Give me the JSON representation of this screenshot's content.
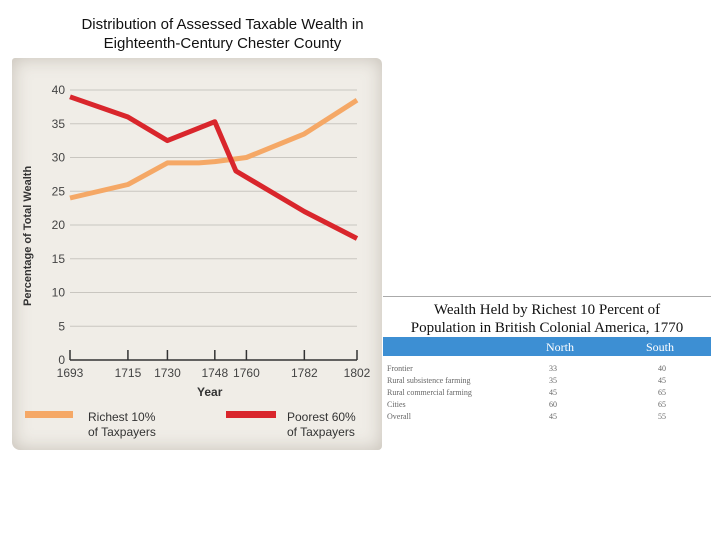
{
  "slide": {
    "title_line1": "Distribution of Assessed Taxable Wealth in",
    "title_line2": "Eighteenth-Century Chester County"
  },
  "chart_data": {
    "type": "line",
    "xlabel": "Year",
    "ylabel": "Percentage of Total Wealth",
    "x": [
      1693,
      1715,
      1730,
      1748,
      1760,
      1782,
      1802
    ],
    "xticks": [
      "1693",
      "1715",
      "1730",
      "1748",
      "1760",
      "1782",
      "1802"
    ],
    "yticks": [
      "0",
      "5",
      "10",
      "15",
      "20",
      "25",
      "30",
      "35",
      "40"
    ],
    "ylim": [
      0,
      40
    ],
    "grid": true,
    "series": [
      {
        "name": "Richest 10% of Taxpayers",
        "label_line1": "Richest 10%",
        "label_line2": "of Taxpayers",
        "color": "#f5a866",
        "points": [
          [
            1693,
            24
          ],
          [
            1715,
            26
          ],
          [
            1730,
            29.2
          ],
          [
            1742,
            29.2
          ],
          [
            1748,
            29.4
          ],
          [
            1760,
            30
          ],
          [
            1782,
            33.5
          ],
          [
            1802,
            38.5
          ]
        ]
      },
      {
        "name": "Poorest 60% of Taxpayers",
        "label_line1": "Poorest 60%",
        "label_line2": "of Taxpayers",
        "color": "#d9262c",
        "points": [
          [
            1693,
            39
          ],
          [
            1715,
            36
          ],
          [
            1730,
            32.5
          ],
          [
            1748,
            35.3
          ],
          [
            1756,
            28
          ],
          [
            1782,
            22
          ],
          [
            1802,
            18
          ]
        ]
      }
    ]
  },
  "table": {
    "title_line1": "Wealth Held by Richest 10 Percent of",
    "title_line2": "Population in British Colonial America, 1770",
    "col_north": "North",
    "col_south": "South",
    "header_color": "#3d8fd3",
    "rows": [
      {
        "label": "Frontier",
        "north": "33",
        "south": "40"
      },
      {
        "label": "Rural subsistence farming",
        "north": "35",
        "south": "45"
      },
      {
        "label": "Rural commercial farming",
        "north": "45",
        "south": "65"
      },
      {
        "label": "Cities",
        "north": "60",
        "south": "65"
      },
      {
        "label": "Overall",
        "north": "45",
        "south": "55"
      }
    ]
  }
}
